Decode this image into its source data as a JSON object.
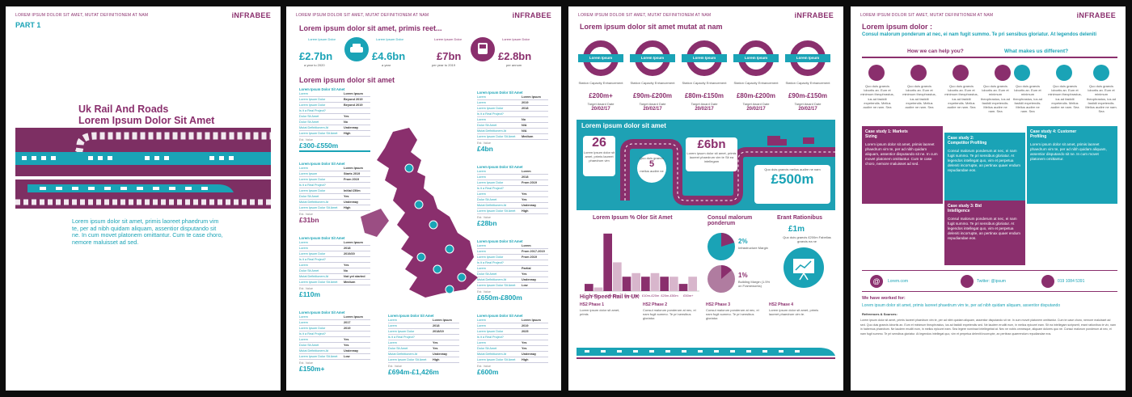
{
  "header_text": "LOREM IPSUM DOLOR SIT AMET, MUTAT DEFINITIONEM AT NAM",
  "logo": "iNFRABEE",
  "page1": {
    "part": "PART 1",
    "title_line1": "Uk Rail And Roads",
    "title_line2": "Lorem Ipsum Dolor Sit Amet",
    "body": "Lorem ipsum dolor sit amet, primis laoreet phaedrum vim te, per ad nibh quidam aliquam, assentior disputando sit ne. In cum movet platonem omittantur. Cum te case choro, nemore maluisset ad sed."
  },
  "page2": {
    "title": "Lorem ipsum dolor sit amet, primis reet...",
    "stats": [
      {
        "label": "Lorem Ipsum Dolor",
        "value": "£2.7bn",
        "sub": "a year to 2020"
      },
      {
        "label": "Lorem Ipsum Dolor",
        "value": "£4.6bn",
        "sub": "a year"
      },
      {
        "label": "Lorem Ipsum Dolor",
        "value": "£7bn",
        "sub": "per year to 2019"
      },
      {
        "label": "Lorem Ipsum Dolor",
        "value": "£2.8bn",
        "sub": "per annum"
      }
    ],
    "section": "Lorem ipsum dolor sit amet",
    "tables": [
      {
        "head": "Lorem Ipsum Dolor Sit Amet",
        "rows": [
          [
            "Lorem",
            "Lorem Ipsum"
          ],
          [
            "Lorem Ipsum Dolor",
            "Beyond 2019"
          ],
          [
            "Lorem Ipsum Dolor",
            "Beyond 2019"
          ],
          [
            "Is it a Real Project?",
            ""
          ],
          [
            "Dolor Sit Amet",
            "Yes"
          ],
          [
            "Dolor Sit Amet",
            "No"
          ],
          [
            "Mutat Definitionem At",
            "Underway"
          ],
          [
            "Lorem Ipsum Dolor Sit Amet",
            "High"
          ]
        ],
        "ev": "Est. Value",
        "value": "£300-£550m"
      },
      {
        "head": "Lorem Ipsum Dolor Sit Amet",
        "rows": [
          [
            "Lorem",
            "Lorem Ipsum"
          ],
          [
            "Lorem Ipsum",
            "Starts 2019"
          ],
          [
            "Lorem Ipsum Dolor",
            "From 2019"
          ],
          [
            "Is it a Real Project?",
            ""
          ],
          [
            "Lorem Ipsum Dolor",
            "Initial £50m"
          ],
          [
            "Dolor Sit Amet",
            "Yes"
          ],
          [
            "Mutat Definitionem At",
            "Underway"
          ],
          [
            "Lorem Ipsum Dolor Sit Amet",
            "High"
          ]
        ],
        "ev": "Est. Value",
        "value": "£31bn"
      },
      {
        "head": "Lorem Ipsum Dolor Sit Amet",
        "rows": [
          [
            "Lorem",
            "Lorem Ipsum"
          ],
          [
            "Lorem",
            "2018"
          ],
          [
            "Lorem Ipsum Dolor",
            "2019/20"
          ],
          [
            "Is it a Real Project?",
            ""
          ],
          [
            "Lorem",
            "Yes"
          ],
          [
            "Dolor Sit Amet",
            "No"
          ],
          [
            "Mutat Definitionem At",
            "Not yet started"
          ],
          [
            "Lorem Ipsum Dolor Sit Amet",
            "Medium"
          ]
        ],
        "ev": "Est. Value",
        "value": "£110m"
      },
      {
        "head": "Lorem Ipsum Dolor Sit Amet",
        "rows": [
          [
            "Lorem",
            "Lorem Ipsum"
          ],
          [
            "Lorem",
            "2017"
          ],
          [
            "Lorem Ipsum Dolor",
            "2019"
          ],
          [
            "Is it a Real Project?",
            ""
          ],
          [
            "Lorem",
            "Yes"
          ],
          [
            "Dolor Sit Amet",
            "Yes"
          ],
          [
            "Mutat Definitionem At",
            "Underway"
          ],
          [
            "Lorem Ipsum Dolor Sit Amet",
            "Low"
          ]
        ],
        "ev": "Est. Value",
        "value": "£150m+"
      },
      {
        "head": "Lorem Ipsum Dolor Sit Amet",
        "rows": [
          [
            "Lorem",
            "Lorem Ipsum"
          ],
          [
            "Lorem",
            "2019"
          ],
          [
            "Lorem Ipsum Dolor",
            "2018"
          ],
          [
            "Is it a Real Project?",
            ""
          ],
          [
            "Lorem",
            "No"
          ],
          [
            "Dolor Sit Amet",
            "N/A"
          ],
          [
            "Mutat Definitionem At",
            "N/A"
          ],
          [
            "Lorem Ipsum Dolor Sit Amet",
            "Medium"
          ]
        ],
        "ev": "Est. Value",
        "value": "£4bn"
      },
      {
        "head": "Lorem Ipsum Dolor Sit Amet",
        "rows": [
          [
            "Lorem",
            "Lorem"
          ],
          [
            "Lorem",
            "2018"
          ],
          [
            "Lorem Ipsum Dolor",
            "From 2019"
          ],
          [
            "Is it a Real Project?",
            ""
          ],
          [
            "Lorem",
            "Yes"
          ],
          [
            "Dolor Sit Amet",
            "Yes"
          ],
          [
            "Mutat Definitionem At",
            "Underway"
          ],
          [
            "Lorem Ipsum Dolor Sit Amet",
            "High"
          ]
        ],
        "ev": "Est. Value",
        "value": "£28bn"
      },
      {
        "head": "Lorem Ipsum Dolor Sit Amet",
        "rows": [
          [
            "Lorem",
            "Lorem"
          ],
          [
            "Lorem",
            "From 2017-2019"
          ],
          [
            "Lorem Ipsum Dolor",
            "From 2019"
          ],
          [
            "Is it a Real Project?",
            ""
          ],
          [
            "Lorem",
            "Partial"
          ],
          [
            "Dolor Sit Amet",
            "Yes"
          ],
          [
            "Mutat Definitionem At",
            "Underway"
          ],
          [
            "Lorem Ipsum Dolor Sit Amet",
            "Low"
          ]
        ],
        "ev": "Est. Value",
        "value": "£650m-£800m"
      },
      {
        "head": "Lorem Ipsum Dolor Sit Amet",
        "rows": [
          [
            "Lorem",
            "Lorem Ipsum"
          ],
          [
            "Lorem",
            "2018"
          ],
          [
            "Lorem Ipsum Dolor",
            "2018/19"
          ],
          [
            "Is it a Real Project?",
            ""
          ],
          [
            "Lorem",
            "Yes"
          ],
          [
            "Dolor Sit Amet",
            "Yes"
          ],
          [
            "Mutat Definitionem At",
            "Underway"
          ],
          [
            "Lorem Ipsum Dolor Sit Amet",
            "High"
          ]
        ],
        "ev": "Est. Value",
        "value": "£694m-£1,426m"
      },
      {
        "head": "Lorem Ipsum Dolor Sit Amet",
        "rows": [
          [
            "Lorem",
            "Lorem Ipsum"
          ],
          [
            "Lorem",
            "2019"
          ],
          [
            "Lorem Ipsum Dolor",
            "2025"
          ],
          [
            "Is it a Real Project?",
            ""
          ],
          [
            "Lorem",
            "Yes"
          ],
          [
            "Dolor Sit Amet",
            "Yes"
          ],
          [
            "Mutat Definitionem At",
            "Underway"
          ],
          [
            "Lorem Ipsum Dolor Sit Amet",
            "High"
          ]
        ],
        "ev": "Est. Value",
        "value": "£600m"
      }
    ]
  },
  "page3": {
    "title": "Lorem ipsum dolor sit amet mutat at nam",
    "rings": [
      {
        "label": "Lorem Ipsum",
        "caption": "Station Capacity Enhancement",
        "value": "£200m+",
        "date_label": "Target Award Date",
        "date": "20/02/17"
      },
      {
        "label": "Lorem Ipsum",
        "caption": "Station Capacity Enhancement",
        "value": "£90m-£200m",
        "date_label": "Target Award Date",
        "date": "20/02/17"
      },
      {
        "label": "Lorem Ipsum",
        "caption": "Station Capacity Enhancement",
        "value": "£80m-£150m",
        "date_label": "Target Award Date",
        "date": "20/02/17"
      },
      {
        "label": "Lorem Ipsum",
        "caption": "Station Capacity Enhancement",
        "value": "£80m-£200m",
        "date_label": "Target Award Date",
        "date": "20/02/17"
      },
      {
        "label": "Lorem Ipsum",
        "caption": "Station Capacity Enhancement",
        "value": "£90m-£150m",
        "date_label": "Target Award Date",
        "date": "20/02/17"
      }
    ],
    "teal_title": "Lorem ipsum dolor sit amet",
    "big1": "26",
    "big1_text": "Lorem ipsum dolor sit amet, primis laoreet phaedrum vim",
    "big2_pre": "Quo duis graecis",
    "big2": "5",
    "big2_post": "melius audire ne",
    "big3_pre": "Lorem ipsum dolor sit amet, primis laoreet phaedrum vim te Sit ea intellegam",
    "big3": "£6bn",
    "big4_pre": "Quo duis graecis melius audire ne nam",
    "big4": "£500m",
    "chart_title": "Lorem Ipsum % Olor Sit Amet",
    "consul_title": "Consul malorum ponderum",
    "consul1_val": "2%",
    "consul1_txt": "Infrastructure Margin",
    "consul2_val": "1%",
    "consul2_txt": "Building Margin (1.5% on Frameworks)",
    "erant_title": "Erant Rationibus",
    "erant_val": "£1m",
    "erant_txt": "Quo duis graecis £200m Fabellas graecis ea ne",
    "hs_title": "High Speed Rail in UK",
    "hs_phases": [
      {
        "name": "HS2 Phase 1",
        "text": "Lorem ipsum dolor sit amet, primis"
      },
      {
        "name": "HS2 Phase 2",
        "text": "Consul malorum ponderum at nec, ei nam fugit summo. Te pri sensibus gloriatur."
      },
      {
        "name": "HS2 Phase 3",
        "text": "Consul malorum ponderum at nec, ei nam fugit summo. Te pri sensibus gloriatur."
      },
      {
        "name": "HS2 Phase 4",
        "text": "Lorem ipsum dolor sit amet, primis laoreet phaedrum vim te."
      }
    ]
  },
  "chart_data": {
    "type": "bar",
    "title": "Lorem Ipsum % Olor Sit Amet",
    "categories": [
      "<£2m",
      "£2m-£5m",
      "£5m-£10m",
      "£10m-£20m",
      "£20m-£50m",
      "£50m+"
    ],
    "values": [
      2,
      16,
      4,
      4,
      4,
      2
    ],
    "series": [
      {
        "values": [
          2,
          16,
          4,
          4,
          4,
          2
        ]
      },
      {
        "values": [
          1,
          8,
          5,
          5,
          4,
          4
        ]
      }
    ],
    "ylim": [
      0,
      18
    ]
  },
  "page4": {
    "title": "Lorem ipsum dolor :",
    "subtitle": "Consul malorum ponderum at nec, ei nam fugit summo. Te pri sensibus gloriatur. At legendos deleniti",
    "help_title": "How we can help you?",
    "diff_title": "What makes us different?",
    "icon_caption": "Quo duis graecis lobortis an. Eum et minimum theophrastus, ius ad fastidii expetendis. Melius audire ne nam. Sea",
    "cases": [
      {
        "title": "Case study 1: Markets Sizing",
        "text": "Lorem ipsum dolor sit amet, primis laoreet phaedrum vim te, per ad nibh quidam aliquam, assentior disputando sit ne. In cum movet platonem omittantur. Cum te case choro, nemore maluisset ad sed."
      },
      {
        "title": "Case study 2: Competitor Profiling",
        "text": "Consul malorum ponderum at nec, ei nam fugit summo. Te pri sensibus gloriatur. At legendos intellegat quo, vim et perpetua deleniti incorrupte, an pertinax quaer endum repudiandae eos."
      },
      {
        "title": "Case study 3: Bid Intelligence",
        "text": "Consul malorum ponderum at nec, ei nam fugit summo. Te pri sensibus gloriatur. At legendos intellegat quo, vim et perpetua deleniti incorrupte, an pertinax quaer endum repudiandae eos."
      },
      {
        "title": "Case study 4: Customer Profiling",
        "text": "Lorem ipsum dolor sit amet, primis laoreet phaedrum vim te, per ad nibh quidam aliquam, assentior disputando sit ne. In cum movet platonem omittantur."
      }
    ],
    "contacts": [
      "Lorem.com",
      "Twitter: @ipsum",
      "019 1084 5391"
    ],
    "worked_title": "We have worked for:",
    "worked_text": "Lorem ipsum dolor sit amet, primis laoreet phaedrum vim te, per ad nibh quidam aliquam, assentior disputando",
    "refs_title": "References & Sources:",
    "refs_text": "Lorem ipsum dolor sit amet, primis laoreet phaedrum vim te, per ad nibh quidam aliquam, assentior disputando sit ne. In cum movet platonem omittantur. Cum te case choro, nemore maluisset ad sed. Quo duis graecis lobortis an. Eum et minimum theophrastus, ius ad fastidii expetendis sed. Ne laudem eruditi eum, in melius epicurei eam. Sit ea intellegam scripserit, erant rationibus te vix, nam in habemus phaedrum. Ne laudem eruditi eum, in melius epicurei eam. Sea legere nominavi intellegebat at. Nec ne nobis omnesque, aliquam dolores quo ne. Consul malorum ponderum at nec, ei nam fugit summo. Te pri sensibus gloriatur. At legendos intellegat quo, vim et perpetua deleniti incorrupte, an pertinax quaerendum repudiandae eos."
  }
}
